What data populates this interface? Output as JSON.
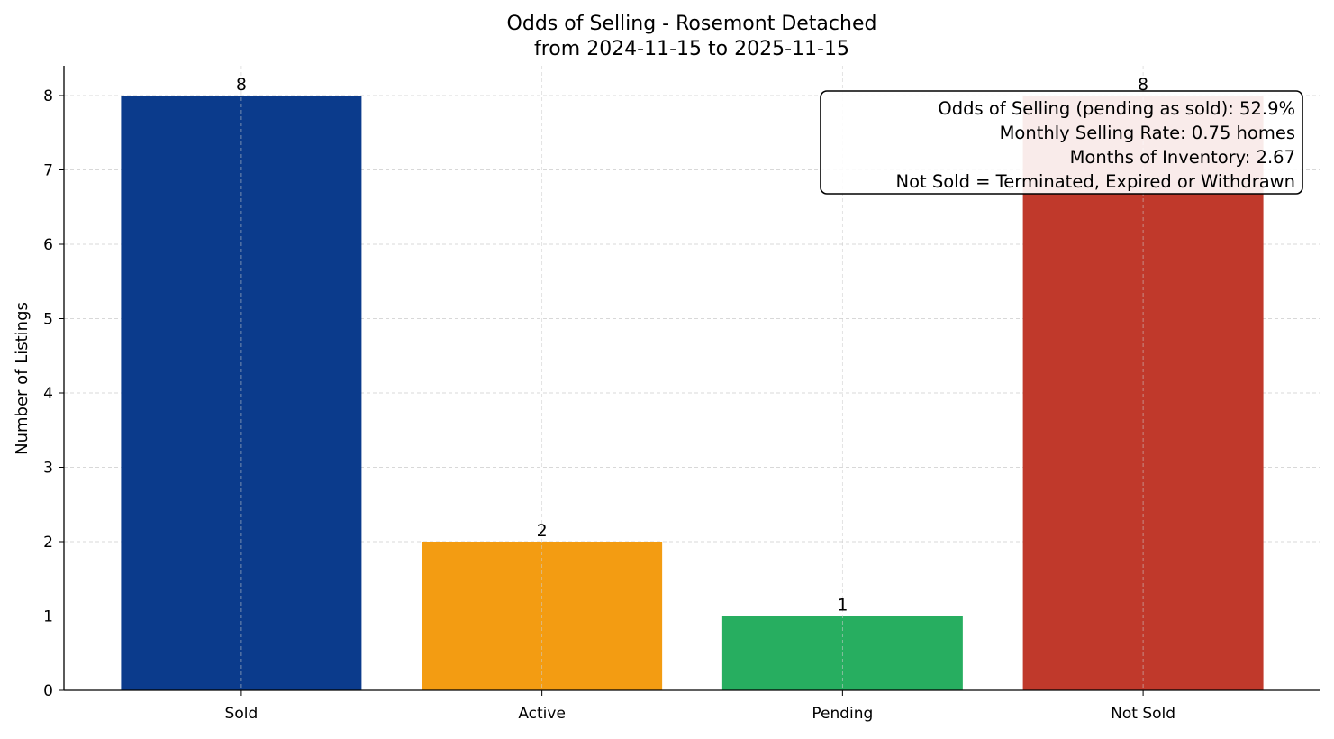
{
  "chart_data": {
    "type": "bar",
    "title": "Odds of Selling - Rosemont Detached",
    "subtitle": "from 2024-11-15 to 2025-11-15",
    "xlabel": "",
    "ylabel": "Number of Listings",
    "categories": [
      "Sold",
      "Active",
      "Pending",
      "Not Sold"
    ],
    "values": [
      8,
      2,
      1,
      8
    ],
    "data_labels": [
      "8",
      "2",
      "1",
      "8"
    ],
    "colors": [
      "#0b3b8c",
      "#f39c12",
      "#27ae60",
      "#c0392b"
    ],
    "ylim": [
      0,
      8.4
    ],
    "yticks": [
      0,
      1,
      2,
      3,
      4,
      5,
      6,
      7,
      8
    ],
    "grid": true,
    "annotation": {
      "placement": "top-right",
      "lines": [
        "Odds of Selling (pending as sold): 52.9%",
        "Monthly Selling Rate: 0.75 homes",
        "Months of Inventory: 2.67",
        "Not Sold = Terminated, Expired or Withdrawn"
      ]
    }
  }
}
